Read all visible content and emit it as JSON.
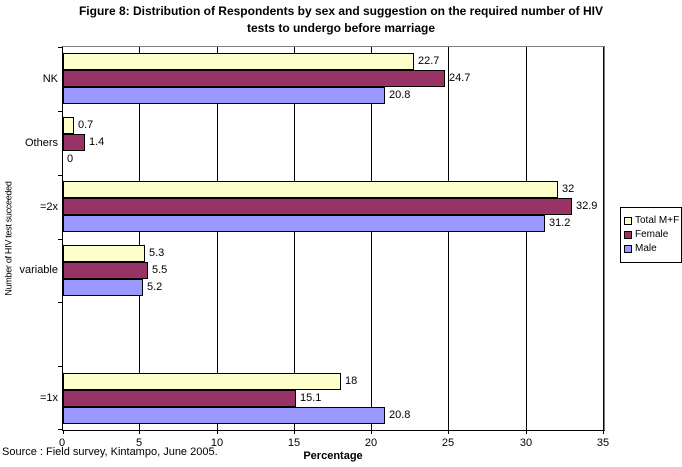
{
  "header": {
    "title_line1": "Figure 8: Distribution of Respondents by sex and suggestion on the required number of HIV",
    "title_line2": "tests to undergo before marriage"
  },
  "footer": {
    "source_note": "Source : Field survey, Kintampo, June 2005."
  },
  "chart_data": {
    "type": "bar",
    "orientation": "horizontal",
    "title": "Figure 8: Distribution of Respondents by sex and suggestion on the required number of HIV tests to undergo before marriage",
    "categories": [
      "NK",
      "Others",
      "=2x",
      "variable",
      "",
      "=1x"
    ],
    "series": [
      {
        "name": "Total M+F",
        "color": "#FFFFCC",
        "values": [
          22.7,
          0.7,
          32,
          5.3,
          null,
          18
        ]
      },
      {
        "name": "Female",
        "color": "#993366",
        "values": [
          24.7,
          1.4,
          32.9,
          5.5,
          null,
          15.1
        ]
      },
      {
        "name": "Male",
        "color": "#9999FF",
        "values": [
          20.8,
          0,
          31.2,
          5.2,
          null,
          20.8
        ]
      }
    ],
    "xlabel": "Percentage",
    "ylabel": "Number of HIV test succeeded",
    "xlim": [
      0,
      35
    ],
    "xticks": [
      0,
      5,
      10,
      15,
      20,
      25,
      30,
      35
    ],
    "grid": "vertical",
    "legend_position": "right",
    "value_labels": true,
    "axis_color": "#000000",
    "plot_border_color": "#808080"
  }
}
